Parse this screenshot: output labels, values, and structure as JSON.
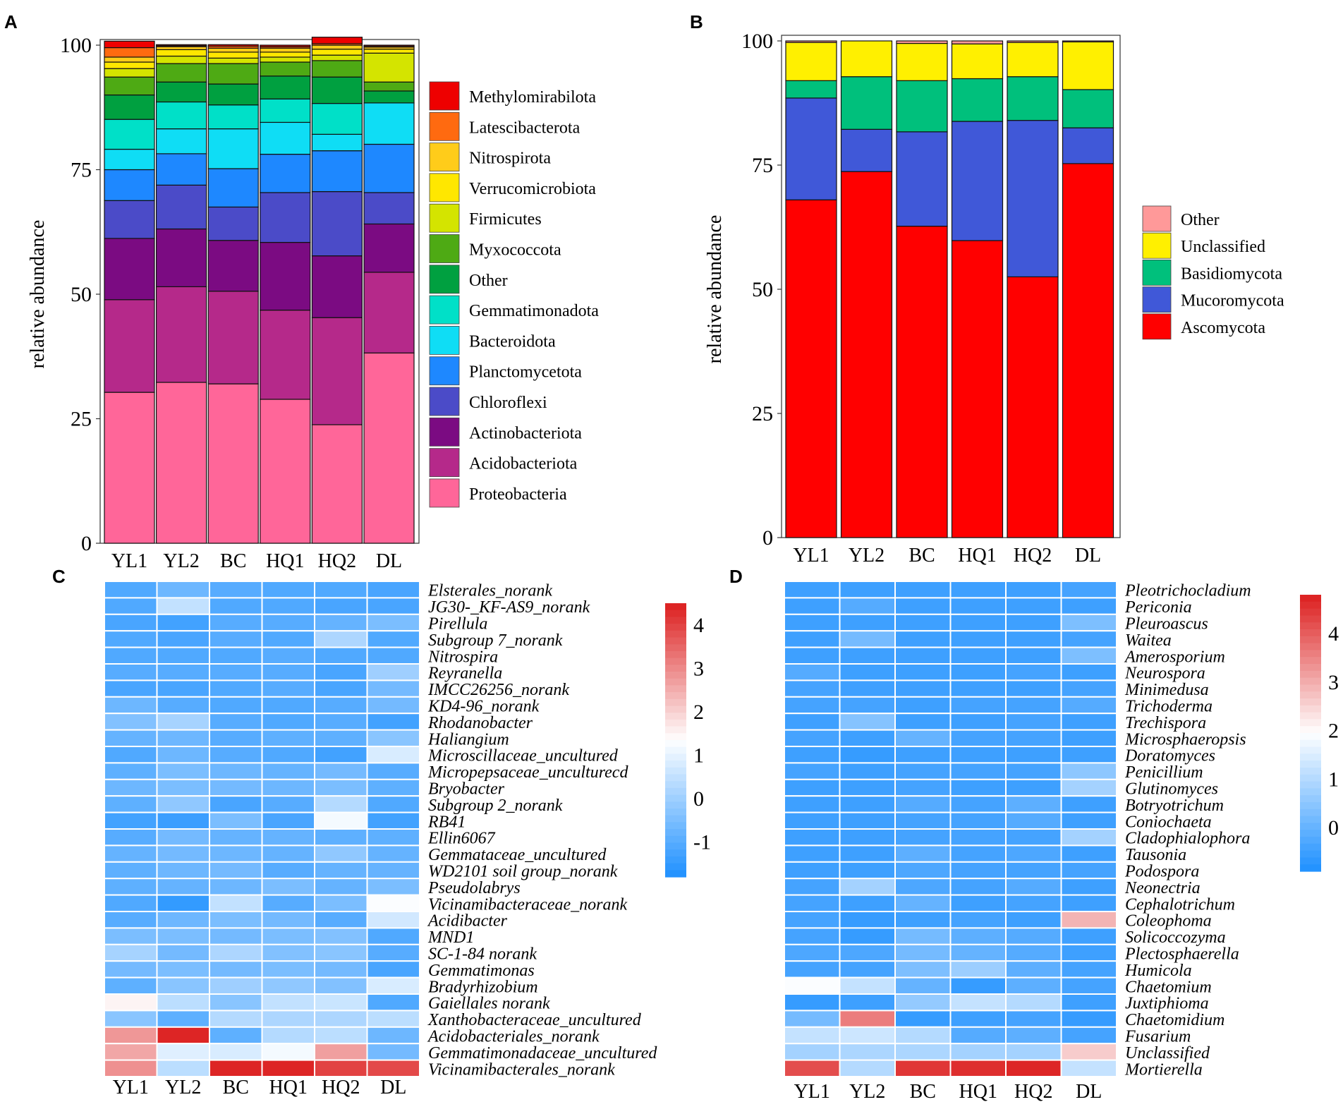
{
  "chart_data": [
    {
      "panel": "A",
      "type": "stacked-bar",
      "categories": [
        "YL1",
        "YL2",
        "BC",
        "HQ1",
        "HQ2",
        "DL"
      ],
      "ylabel": "relative abundance",
      "ylim": [
        0,
        100
      ],
      "yticks": [
        "0",
        "25",
        "50",
        "75",
        "100"
      ],
      "series": [
        {
          "name": "Proteobacteria",
          "color": "#FF6699",
          "values": [
            30.3,
            32.3,
            32.0,
            28.9,
            23.8,
            38.2
          ]
        },
        {
          "name": "Acidobacteriota",
          "color": "#B5298A",
          "values": [
            18.6,
            19.2,
            18.6,
            17.9,
            21.5,
            16.2
          ]
        },
        {
          "name": "Actinobacteriota",
          "color": "#7B0B82",
          "values": [
            12.3,
            11.6,
            10.2,
            13.6,
            12.4,
            9.7
          ]
        },
        {
          "name": "Chloroflexi",
          "color": "#4B4BC8",
          "values": [
            7.6,
            8.8,
            6.7,
            10.0,
            12.9,
            6.3
          ]
        },
        {
          "name": "Planctomycetota",
          "color": "#1E88FF",
          "values": [
            6.2,
            6.3,
            7.7,
            7.7,
            8.2,
            9.7
          ]
        },
        {
          "name": "Bacteroidota",
          "color": "#0FDDF5",
          "values": [
            4.1,
            5.0,
            8.0,
            6.4,
            3.3,
            8.3
          ]
        },
        {
          "name": "Gemmatimonadota",
          "color": "#00E0C8",
          "values": [
            6.0,
            5.4,
            4.8,
            4.7,
            6.2,
            0.0
          ]
        },
        {
          "name": "Other",
          "color": "#00A040",
          "values": [
            4.9,
            4.0,
            4.2,
            4.6,
            5.3,
            2.4
          ]
        },
        {
          "name": "Myxococcota",
          "color": "#4EAA14",
          "values": [
            3.6,
            3.7,
            4.1,
            2.8,
            3.3,
            1.8
          ]
        },
        {
          "name": "Firmicutes",
          "color": "#D4E400",
          "values": [
            1.7,
            1.5,
            1.1,
            1.0,
            1.1,
            5.8
          ]
        },
        {
          "name": "Verrucomicrobiota",
          "color": "#FFE700",
          "values": [
            1.3,
            1.3,
            1.2,
            1.0,
            1.2,
            0.8
          ]
        },
        {
          "name": "Nitrospirota",
          "color": "#FFCC1A",
          "values": [
            1.0,
            0.6,
            0.8,
            0.8,
            0.8,
            0.4
          ]
        },
        {
          "name": "Latescibacterota",
          "color": "#FF6A10",
          "values": [
            1.9,
            0.2,
            0.4,
            0.3,
            0.3,
            0.2
          ]
        },
        {
          "name": "Methylomirabilota",
          "color": "#EE0000",
          "values": [
            1.3,
            0.2,
            0.3,
            0.3,
            1.3,
            0.2
          ]
        }
      ]
    },
    {
      "panel": "B",
      "type": "stacked-bar",
      "categories": [
        "YL1",
        "YL2",
        "BC",
        "HQ1",
        "HQ2",
        "DL"
      ],
      "ylabel": "relative abundance",
      "ylim": [
        0,
        100
      ],
      "yticks": [
        "0",
        "25",
        "50",
        "75",
        "100"
      ],
      "series": [
        {
          "name": "Ascomycota",
          "color": "#FF0000",
          "values": [
            68.0,
            73.7,
            62.7,
            59.8,
            52.5,
            75.3
          ]
        },
        {
          "name": "Mucoromycota",
          "color": "#4058D8",
          "values": [
            20.5,
            8.5,
            19.0,
            24.0,
            31.5,
            7.2
          ]
        },
        {
          "name": "Basidiomycota",
          "color": "#00C07C",
          "values": [
            3.5,
            10.6,
            10.3,
            8.6,
            8.8,
            7.7
          ]
        },
        {
          "name": "Unclassified",
          "color": "#FFF000",
          "values": [
            7.7,
            7.2,
            7.5,
            7.0,
            6.9,
            9.6
          ]
        },
        {
          "name": "Other",
          "color": "#FF9999",
          "values": [
            0.3,
            0.0,
            0.5,
            0.6,
            0.3,
            0.2
          ]
        }
      ]
    },
    {
      "panel": "C",
      "type": "heatmap",
      "columns": [
        "YL1",
        "YL2",
        "BC",
        "HQ1",
        "HQ2",
        "DL"
      ],
      "colorbar_ticks": [
        "-1",
        "0",
        "1",
        "2",
        "3",
        "4"
      ],
      "colorbar_range": [
        -1.8,
        4.5
      ],
      "rows": [
        {
          "name": "Elsterales_norank",
          "values": [
            -1.1,
            -0.7,
            -1.0,
            -1.1,
            -1.1,
            -1.2
          ]
        },
        {
          "name": "JG30-_KF-AS9_norank",
          "values": [
            -1.1,
            0.5,
            -1.1,
            -1.1,
            -1.2,
            -1.2
          ]
        },
        {
          "name": "Pirellula",
          "values": [
            -1.2,
            -1.3,
            -1.0,
            -1.0,
            -0.8,
            -0.5
          ]
        },
        {
          "name": "Subgroup 7_norank",
          "values": [
            -1.1,
            -1.2,
            -1.0,
            -1.1,
            0.2,
            -1.1
          ]
        },
        {
          "name": "Nitrospira",
          "values": [
            -1.1,
            -1.1,
            -1.1,
            -1.0,
            -1.1,
            -1.1
          ]
        },
        {
          "name": "Reyranella",
          "values": [
            -1.0,
            -1.0,
            -1.0,
            -1.0,
            -1.2,
            0.0
          ]
        },
        {
          "name": "IMCC26256_norank",
          "values": [
            -1.2,
            -1.2,
            -1.1,
            -1.0,
            -1.2,
            -0.6
          ]
        },
        {
          "name": "KD4-96_norank",
          "values": [
            -0.7,
            -1.0,
            -1.1,
            -1.1,
            -1.0,
            -0.6
          ]
        },
        {
          "name": "Rhodanobacter",
          "values": [
            -0.4,
            0.1,
            -1.0,
            -1.1,
            -1.0,
            -1.3
          ]
        },
        {
          "name": "Haliangium",
          "values": [
            -0.8,
            -0.7,
            -1.0,
            -0.9,
            -0.9,
            -0.3
          ]
        },
        {
          "name": "Microscillaceae_uncultured",
          "values": [
            -1.1,
            -0.7,
            -1.0,
            -1.1,
            -1.3,
            0.8
          ]
        },
        {
          "name": "Micropepsaceae_unculturecd",
          "values": [
            -0.9,
            -0.5,
            -0.7,
            -0.8,
            -0.6,
            -1.0
          ]
        },
        {
          "name": "Bryobacter",
          "values": [
            -0.7,
            -0.5,
            -0.6,
            -0.7,
            -0.5,
            -0.9
          ]
        },
        {
          "name": "Subgroup 2_norank",
          "values": [
            -0.9,
            -0.2,
            -1.2,
            -1.0,
            0.3,
            -1.1
          ]
        },
        {
          "name": "RB41",
          "values": [
            -1.3,
            -1.4,
            -0.5,
            -1.2,
            1.2,
            -1.3
          ]
        },
        {
          "name": "Ellin6067",
          "values": [
            -1.0,
            -0.6,
            -0.8,
            -0.8,
            -0.9,
            -0.9
          ]
        },
        {
          "name": "Gemmataceae_uncultured",
          "values": [
            -0.8,
            -0.6,
            -0.7,
            -0.8,
            -0.2,
            -0.8
          ]
        },
        {
          "name": "WD2101 soil group_norank",
          "values": [
            -0.9,
            -0.7,
            -0.6,
            -1.0,
            -0.8,
            -0.8
          ]
        },
        {
          "name": "Pseudolabrys",
          "values": [
            -0.9,
            -0.8,
            -0.7,
            -0.5,
            -0.8,
            -0.5
          ]
        },
        {
          "name": "Vicinamibacteraceae_norank",
          "values": [
            -1.1,
            -1.5,
            0.5,
            -1.0,
            -0.5,
            1.3
          ]
        },
        {
          "name": "Acidibacter",
          "values": [
            -1.0,
            -0.7,
            -0.5,
            -0.6,
            -1.0,
            0.7
          ]
        },
        {
          "name": "MND1",
          "values": [
            -0.5,
            -0.5,
            -0.6,
            -0.5,
            -0.4,
            -1.1
          ]
        },
        {
          "name": "SC-1-84 norank",
          "values": [
            0.1,
            -0.6,
            0.2,
            -0.4,
            -0.3,
            -1.0
          ]
        },
        {
          "name": "Gemmatimonas",
          "values": [
            -0.6,
            -0.5,
            -0.6,
            -0.5,
            -0.6,
            -1.2
          ]
        },
        {
          "name": "Bradyrhizobium",
          "values": [
            -0.9,
            -0.3,
            0.0,
            -0.2,
            -0.4,
            0.8
          ]
        },
        {
          "name": "Gaiellales norank",
          "values": [
            1.5,
            0.4,
            -0.3,
            0.5,
            0.6,
            -1.1
          ]
        },
        {
          "name": "Xanthobacteraceae_uncultured",
          "values": [
            -0.3,
            -0.9,
            0.3,
            0.2,
            0.2,
            0.4
          ]
        },
        {
          "name": "Acidobacteriales_norank",
          "values": [
            2.8,
            4.4,
            -0.9,
            0.3,
            0.4,
            -0.7
          ]
        },
        {
          "name": "Gemmatimonadaceae_uncultured",
          "values": [
            2.6,
            0.9,
            0.8,
            1.2,
            2.7,
            -0.6
          ]
        },
        {
          "name": "Vicinamibacterales_norank",
          "values": [
            2.9,
            0.4,
            4.4,
            4.4,
            4.0,
            3.9
          ]
        }
      ]
    },
    {
      "panel": "D",
      "type": "heatmap",
      "columns": [
        "YL1",
        "YL2",
        "BC",
        "HQ1",
        "HQ2",
        "DL"
      ],
      "colorbar_ticks": [
        "0",
        "1",
        "2",
        "3",
        "4"
      ],
      "colorbar_range": [
        -0.9,
        4.8
      ],
      "rows": [
        {
          "name": "Pleotrichocladium",
          "values": [
            -0.5,
            -0.5,
            -0.5,
            -0.5,
            -0.5,
            -0.4
          ]
        },
        {
          "name": "Periconia",
          "values": [
            -0.5,
            -0.2,
            -0.5,
            -0.5,
            -0.5,
            -0.5
          ]
        },
        {
          "name": "Pleuroascus",
          "values": [
            -0.5,
            -0.5,
            -0.5,
            -0.5,
            -0.5,
            0.3
          ]
        },
        {
          "name": "Waitea",
          "values": [
            -0.5,
            0.2,
            -0.5,
            -0.5,
            -0.5,
            -0.4
          ]
        },
        {
          "name": "Amerosporium",
          "values": [
            -0.5,
            -0.5,
            -0.5,
            -0.5,
            -0.5,
            0.3
          ]
        },
        {
          "name": "Neurospora",
          "values": [
            -0.2,
            -0.5,
            -0.5,
            -0.5,
            -0.4,
            -0.5
          ]
        },
        {
          "name": "Minimedusa",
          "values": [
            -0.4,
            -0.5,
            -0.5,
            -0.5,
            -0.5,
            -0.4
          ]
        },
        {
          "name": "Trichoderma",
          "values": [
            -0.4,
            -0.4,
            -0.5,
            -0.4,
            -0.4,
            -0.2
          ]
        },
        {
          "name": "Trechispora",
          "values": [
            -0.5,
            0.4,
            -0.5,
            -0.5,
            -0.4,
            -0.5
          ]
        },
        {
          "name": "Microsphaeropsis",
          "values": [
            -0.4,
            -0.5,
            0.0,
            -0.4,
            -0.4,
            -0.5
          ]
        },
        {
          "name": "Doratomyces",
          "values": [
            -0.5,
            -0.6,
            -0.5,
            -0.5,
            -0.5,
            -0.5
          ]
        },
        {
          "name": "Penicillium",
          "values": [
            -0.4,
            -0.5,
            -0.4,
            -0.4,
            -0.4,
            0.5
          ]
        },
        {
          "name": "Glutinomyces",
          "values": [
            -0.5,
            -0.5,
            -0.4,
            -0.5,
            -0.5,
            0.8
          ]
        },
        {
          "name": "Botryotrichum",
          "values": [
            -0.5,
            -0.5,
            -0.2,
            -0.4,
            -0.1,
            -0.5
          ]
        },
        {
          "name": "Coniochaeta",
          "values": [
            -0.5,
            -0.5,
            -0.4,
            -0.4,
            -0.2,
            -0.5
          ]
        },
        {
          "name": "Cladophialophora",
          "values": [
            -0.5,
            -0.5,
            -0.4,
            -0.4,
            -0.4,
            0.8
          ]
        },
        {
          "name": "Tausonia",
          "values": [
            -0.5,
            -0.5,
            -0.1,
            -0.4,
            -0.3,
            -0.5
          ]
        },
        {
          "name": "Podospora",
          "values": [
            -0.5,
            -0.5,
            -0.3,
            -0.4,
            -0.4,
            -0.4
          ]
        },
        {
          "name": "Neonectria",
          "values": [
            -0.4,
            0.8,
            -0.3,
            -0.4,
            -0.2,
            -0.5
          ]
        },
        {
          "name": "Cephalotrichum",
          "values": [
            -0.4,
            -0.5,
            0.0,
            -0.5,
            -0.4,
            -0.5
          ]
        },
        {
          "name": "Coleophoma",
          "values": [
            -0.4,
            -0.6,
            -0.5,
            -0.4,
            -0.5,
            2.9
          ]
        },
        {
          "name": "Solicoccozyma",
          "values": [
            -0.4,
            -0.6,
            0.2,
            -0.1,
            -0.2,
            -0.5
          ]
        },
        {
          "name": "Plectosphaerella",
          "values": [
            -0.3,
            -0.3,
            0.2,
            0.0,
            -0.2,
            -0.5
          ]
        },
        {
          "name": "Humicola",
          "values": [
            -0.4,
            -0.4,
            0.3,
            0.7,
            -0.1,
            -0.4
          ]
        },
        {
          "name": "Chaetomium",
          "values": [
            1.9,
            1.2,
            0.0,
            -0.6,
            -0.1,
            -0.4
          ]
        },
        {
          "name": "Juxtiphioma",
          "values": [
            -0.6,
            -0.5,
            0.6,
            1.2,
            1.0,
            -0.5
          ]
        },
        {
          "name": "Chaetomidium",
          "values": [
            0.2,
            3.6,
            -0.6,
            -0.5,
            -0.4,
            -0.6
          ]
        },
        {
          "name": "Fusarium",
          "values": [
            1.2,
            1.3,
            1.0,
            -0.2,
            -0.1,
            -0.4
          ]
        },
        {
          "name": "Unclassified",
          "values": [
            0.8,
            0.9,
            0.9,
            0.8,
            0.8,
            2.6
          ]
        },
        {
          "name": "Mortierella",
          "values": [
            4.2,
            1.0,
            4.5,
            4.6,
            4.7,
            1.2
          ]
        }
      ]
    }
  ]
}
